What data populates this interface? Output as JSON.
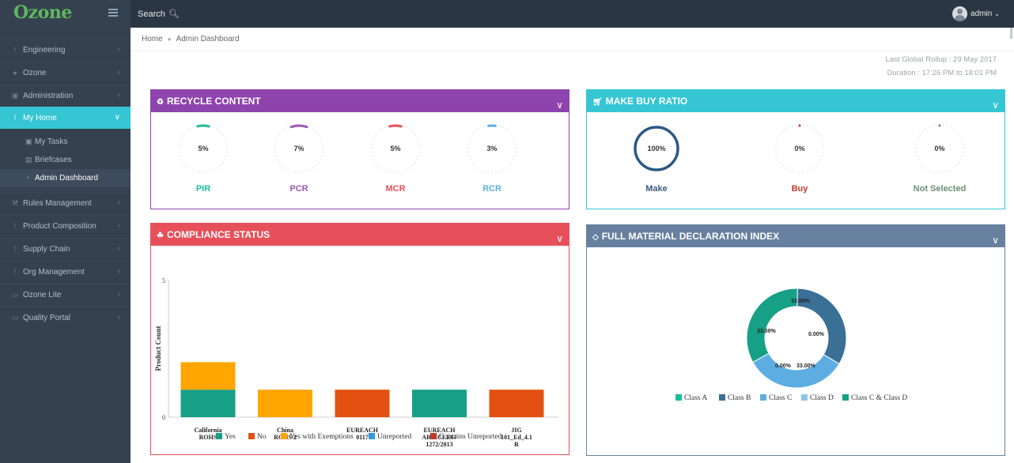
{
  "topbar": {
    "brand": "Ozone",
    "search_label": "Search",
    "user_name": "admin"
  },
  "sidebar": {
    "items": [
      {
        "label": "Engineering",
        "icon": "exclamation-icon"
      },
      {
        "label": "Ozone",
        "icon": "globe-icon"
      },
      {
        "label": "Administration",
        "icon": "lock-icon"
      },
      {
        "label": "My Home",
        "icon": "exclamation-icon",
        "active": true
      },
      {
        "label": "Rules Management",
        "icon": "wrench-icon"
      },
      {
        "label": "Product Composition",
        "icon": "exclamation-icon"
      },
      {
        "label": "Supply Chain",
        "icon": "exclamation-icon"
      },
      {
        "label": "Org Management",
        "icon": "exclamation-icon"
      },
      {
        "label": "Ozone Lite",
        "icon": "card-icon"
      },
      {
        "label": "Quality Portal",
        "icon": "card-icon"
      }
    ],
    "sub_items": [
      {
        "label": "My Tasks",
        "icon": "briefcase-icon"
      },
      {
        "label": "Briefcases",
        "icon": "folder-icon"
      },
      {
        "label": "Admin Dashboard",
        "icon": "dashboard-icon",
        "active": true
      }
    ]
  },
  "breadcrumb": {
    "home": "Home",
    "current": "Admin Dashboard"
  },
  "rollup": {
    "last_rollup": "Last Global Rollup : 29 May 2017",
    "duration": "Duration : 17:26 PM to 18:01 PM"
  },
  "panels": {
    "recycle": {
      "title": "RECYCLE CONTENT",
      "color": "#8e44ad",
      "gauges": [
        {
          "value": "5%",
          "fraction": 0.05,
          "label": "PIR",
          "color": "#1bbc9b"
        },
        {
          "value": "7%",
          "fraction": 0.07,
          "label": "PCR",
          "color": "#9b59b6"
        },
        {
          "value": "5%",
          "fraction": 0.05,
          "label": "MCR",
          "color": "#e7505a"
        },
        {
          "value": "3%",
          "fraction": 0.03,
          "label": "RCR",
          "color": "#5dade2"
        }
      ]
    },
    "makebuy": {
      "title": "MAKE BUY RATIO",
      "color": "#36c6d3",
      "gauges": [
        {
          "value": "100%",
          "fraction": 1.0,
          "label": "Make",
          "color": "#2c5985",
          "label_color": "#3b5b78"
        },
        {
          "value": "0%",
          "fraction": 0.0,
          "label": "Buy",
          "color": "#c0392b",
          "label_color": "#c0392b"
        },
        {
          "value": "0%",
          "fraction": 0.0,
          "label": "Not Selected",
          "color": "#5f8f6f",
          "label_color": "#6b8f71"
        }
      ]
    },
    "compliance": {
      "title": "COMPLIANCE STATUS",
      "color": "#e7505a"
    },
    "fmd": {
      "title": "FULL MATERIAL DECLARATION INDEX",
      "color": "#67809f"
    }
  },
  "chart_data": [
    {
      "type": "bar",
      "stacked": true,
      "ylabel": "Product Count",
      "ylim": [
        0,
        5
      ],
      "yticks": [
        "5",
        "0"
      ],
      "categories": [
        [
          "California",
          "ROHS"
        ],
        [
          "China",
          "ROHS 2"
        ],
        [
          "EUREACH",
          "0117"
        ],
        [
          "EUREACH",
          "ARTICLE67",
          "1272/2013"
        ],
        [
          "JIG",
          "101_Ed_4.1",
          "R"
        ]
      ],
      "series": [
        {
          "name": "Yes",
          "color": "#16a085",
          "values": [
            1,
            0,
            0,
            1,
            0
          ]
        },
        {
          "name": "No",
          "color": "#e25012",
          "values": [
            0,
            0,
            1,
            0,
            1
          ]
        },
        {
          "name": "Yes with Exemptions",
          "color": "#fea500",
          "values": [
            1,
            1,
            0,
            0,
            0
          ]
        },
        {
          "name": "Unreported",
          "color": "#3498db",
          "values": [
            0,
            0,
            0,
            0,
            0
          ]
        },
        {
          "name": "Contains Unreported",
          "color": "#c0392b",
          "values": [
            0,
            0,
            0,
            0,
            0
          ]
        }
      ],
      "legend": "bottom"
    },
    {
      "type": "pie",
      "donut": true,
      "slices": [
        {
          "name": "Class A",
          "value": 0.0,
          "label": "0.00%",
          "color": "#1bbc9b"
        },
        {
          "name": "Class B",
          "value": 33.0,
          "label": "33.00%",
          "color": "#3a6f96"
        },
        {
          "name": "Class C",
          "value": 33.0,
          "label": "33.00%",
          "color": "#5dade2"
        },
        {
          "name": "Class D",
          "value": 0.0,
          "label": "0.00%",
          "color": "#8ec6e8"
        },
        {
          "name": "Class C & Class D",
          "value": 33.0,
          "label": "33.00%",
          "color": "#16a085"
        }
      ],
      "legend": "bottom"
    }
  ]
}
